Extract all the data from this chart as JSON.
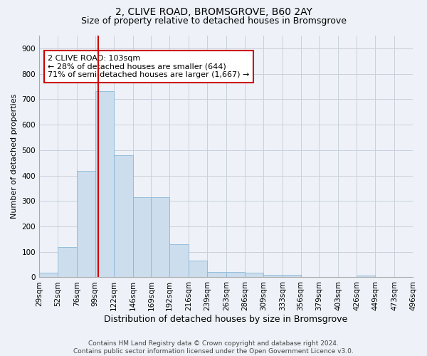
{
  "title": "2, CLIVE ROAD, BROMSGROVE, B60 2AY",
  "subtitle": "Size of property relative to detached houses in Bromsgrove",
  "xlabel": "Distribution of detached houses by size in Bromsgrove",
  "ylabel": "Number of detached properties",
  "bar_color": "#ccdded",
  "bar_edgecolor": "#89b8d8",
  "grid_color": "#c8d0dc",
  "background_color": "#eef2f8",
  "annotation_box_color": "#ffffff",
  "annotation_box_edgecolor": "#cc0000",
  "vline_color": "#cc0000",
  "vline_x": 103,
  "annotation_text": "2 CLIVE ROAD: 103sqm\n← 28% of detached houses are smaller (644)\n71% of semi-detached houses are larger (1,667) →",
  "footer_text": "Contains HM Land Registry data © Crown copyright and database right 2024.\nContains public sector information licensed under the Open Government Licence v3.0.",
  "bin_edges": [
    29,
    52,
    76,
    99,
    122,
    146,
    169,
    192,
    216,
    239,
    263,
    286,
    309,
    333,
    356,
    379,
    403,
    426,
    449,
    473,
    496
  ],
  "bar_heights": [
    18,
    120,
    418,
    733,
    480,
    315,
    315,
    130,
    65,
    22,
    22,
    18,
    10,
    10,
    0,
    0,
    0,
    8,
    0,
    0
  ],
  "ylim": [
    0,
    950
  ],
  "yticks": [
    0,
    100,
    200,
    300,
    400,
    500,
    600,
    700,
    800,
    900
  ],
  "title_fontsize": 10,
  "subtitle_fontsize": 9,
  "xlabel_fontsize": 9,
  "ylabel_fontsize": 8,
  "tick_fontsize": 7.5,
  "annotation_fontsize": 8,
  "footer_fontsize": 6.5
}
